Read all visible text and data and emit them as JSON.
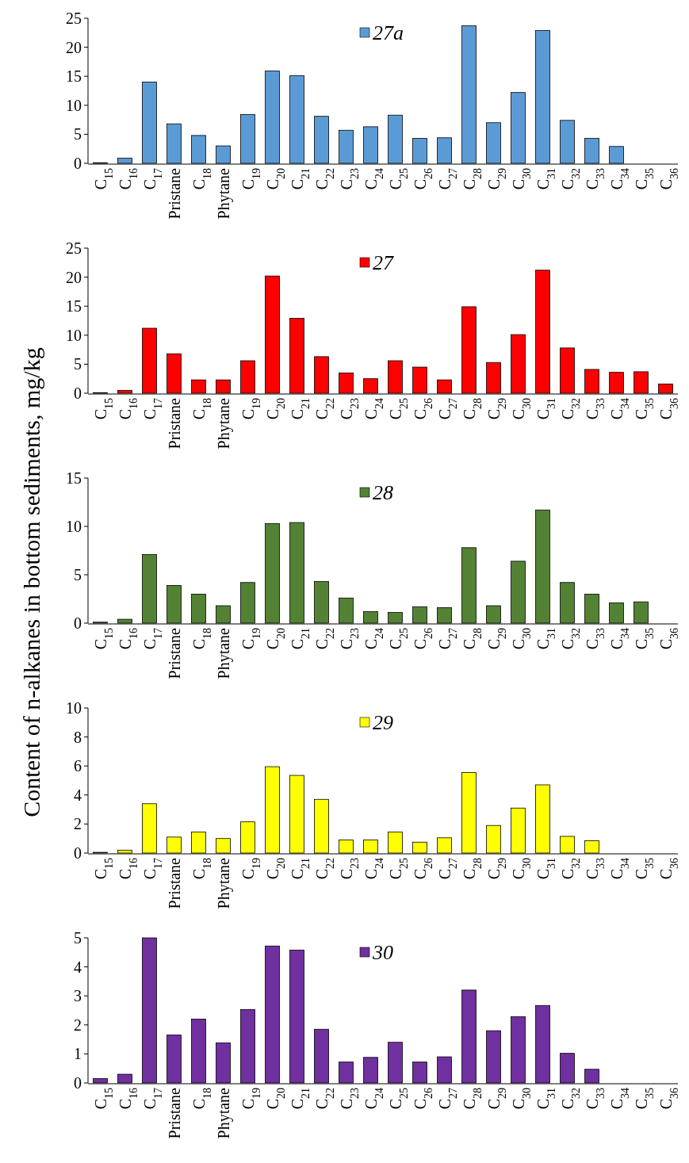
{
  "chart_data": [
    {
      "type": "bar",
      "categories": [
        "C$_{15}$",
        "C$_{16}$",
        "C$_{17}$",
        "Pristane",
        "C$_{18}$",
        "Phytane",
        "C$_{19}$",
        "C$_{20}$",
        "C$_{21}$",
        "C$_{22}$",
        "C$_{23}$",
        "C$_{24}$",
        "C$_{25}$",
        "C$_{26}$",
        "C$_{27}$",
        "C$_{28}$",
        "C$_{29}$",
        "C$_{30}$",
        "C$_{31}$",
        "C$_{32}$",
        "C$_{33}$",
        "C$_{34}$",
        "C$_{35}$",
        "C$_{36}$"
      ],
      "series": [
        {
          "name": "27a",
          "color": "#5b9bd5",
          "values": [
            0.1,
            0.9,
            14,
            6.8,
            4.8,
            3.0,
            8.4,
            15.9,
            15.1,
            8.1,
            5.7,
            6.3,
            8.3,
            4.3,
            4.4,
            23.7,
            7.0,
            12.2,
            22.9,
            7.4,
            4.3,
            2.9,
            0,
            0
          ]
        }
      ],
      "ylim": [
        0,
        25
      ],
      "yticks": [
        0,
        5,
        10,
        15,
        20,
        25
      ],
      "legend": "top"
    },
    {
      "type": "bar",
      "categories": [
        "C$_{15}$",
        "C$_{16}$",
        "C$_{17}$",
        "Pristane",
        "C$_{18}$",
        "Phytane",
        "C$_{19}$",
        "C$_{20}$",
        "C$_{21}$",
        "C$_{22}$",
        "C$_{23}$",
        "C$_{24}$",
        "C$_{25}$",
        "C$_{26}$",
        "C$_{27}$",
        "C$_{28}$",
        "C$_{29}$",
        "C$_{30}$",
        "C$_{31}$",
        "C$_{32}$",
        "C$_{33}$",
        "C$_{34}$",
        "C$_{35}$",
        "C$_{36}$"
      ],
      "series": [
        {
          "name": "27",
          "color": "#ff0000",
          "values": [
            0.1,
            0.5,
            11.2,
            6.8,
            2.3,
            2.3,
            5.6,
            20.2,
            12.9,
            6.3,
            3.5,
            2.5,
            5.6,
            4.5,
            2.3,
            14.9,
            5.3,
            10.1,
            21.2,
            7.8,
            4.1,
            3.6,
            3.7,
            1.6
          ]
        }
      ],
      "ylim": [
        0,
        25
      ],
      "yticks": [
        0,
        5,
        10,
        15,
        20,
        25
      ],
      "legend": "top"
    },
    {
      "type": "bar",
      "ylabel": "Content of n-alkanes in bottom sediments, mg/kg",
      "categories": [
        "C$_{15}$",
        "C$_{16}$",
        "C$_{17}$",
        "Pristane",
        "C$_{18}$",
        "Phytane",
        "C$_{19}$",
        "C$_{20}$",
        "C$_{21}$",
        "C$_{22}$",
        "C$_{23}$",
        "C$_{24}$",
        "C$_{25}$",
        "C$_{26}$",
        "C$_{27}$",
        "C$_{28}$",
        "C$_{29}$",
        "C$_{30}$",
        "C$_{31}$",
        "C$_{32}$",
        "C$_{33}$",
        "C$_{34}$",
        "C$_{35}$",
        "C$_{36}$"
      ],
      "series": [
        {
          "name": "28",
          "color": "#548235",
          "values": [
            0.1,
            0.4,
            7.1,
            3.9,
            3.0,
            1.8,
            4.2,
            10.3,
            10.4,
            4.3,
            2.6,
            1.2,
            1.1,
            1.7,
            1.6,
            7.8,
            1.8,
            6.4,
            11.7,
            4.2,
            3.0,
            2.1,
            2.2,
            0
          ]
        }
      ],
      "ylim": [
        0,
        15
      ],
      "yticks": [
        0,
        5,
        10,
        15
      ],
      "legend": "top"
    },
    {
      "type": "bar",
      "categories": [
        "C$_{15}$",
        "C$_{16}$",
        "C$_{17}$",
        "Pristane",
        "C$_{18}$",
        "Phytane",
        "C$_{19}$",
        "C$_{20}$",
        "C$_{21}$",
        "C$_{22}$",
        "C$_{23}$",
        "C$_{24}$",
        "C$_{25}$",
        "C$_{26}$",
        "C$_{27}$",
        "C$_{28}$",
        "C$_{29}$",
        "C$_{30}$",
        "C$_{31}$",
        "C$_{32}$",
        "C$_{33}$",
        "C$_{34}$",
        "C$_{35}$",
        "C$_{36}$"
      ],
      "series": [
        {
          "name": "29",
          "color": "#ffff00",
          "values": [
            0.05,
            0.2,
            3.4,
            1.1,
            1.45,
            1.0,
            2.15,
            5.95,
            5.35,
            3.7,
            0.9,
            0.9,
            1.45,
            0.75,
            1.05,
            5.55,
            1.9,
            3.1,
            4.7,
            1.15,
            0.85,
            0,
            0,
            0
          ]
        }
      ],
      "ylim": [
        0,
        10
      ],
      "yticks": [
        0,
        2,
        4,
        6,
        8,
        10
      ],
      "legend": "top"
    },
    {
      "type": "bar",
      "categories": [
        "C$_{15}$",
        "C$_{16}$",
        "C$_{17}$",
        "Pristane",
        "C$_{18}$",
        "Phytane",
        "C$_{19}$",
        "C$_{20}$",
        "C$_{21}$",
        "C$_{22}$",
        "C$_{23}$",
        "C$_{24}$",
        "C$_{25}$",
        "C$_{26}$",
        "C$_{27}$",
        "C$_{28}$",
        "C$_{29}$",
        "C$_{30}$",
        "C$_{31}$",
        "C$_{32}$",
        "C$_{33}$",
        "C$_{34}$",
        "C$_{35}$",
        "C$_{36}$"
      ],
      "series": [
        {
          "name": "30",
          "color": "#7030a0",
          "values": [
            0.15,
            0.3,
            5.0,
            1.65,
            2.2,
            1.38,
            2.53,
            4.72,
            4.58,
            1.85,
            0.72,
            0.88,
            1.4,
            0.72,
            0.9,
            3.2,
            1.8,
            2.28,
            2.67,
            1.02,
            0.47,
            0,
            0,
            0
          ]
        }
      ],
      "ylim": [
        0,
        5
      ],
      "yticks": [
        0,
        1,
        2,
        3,
        4,
        5
      ],
      "legend": "top"
    }
  ]
}
